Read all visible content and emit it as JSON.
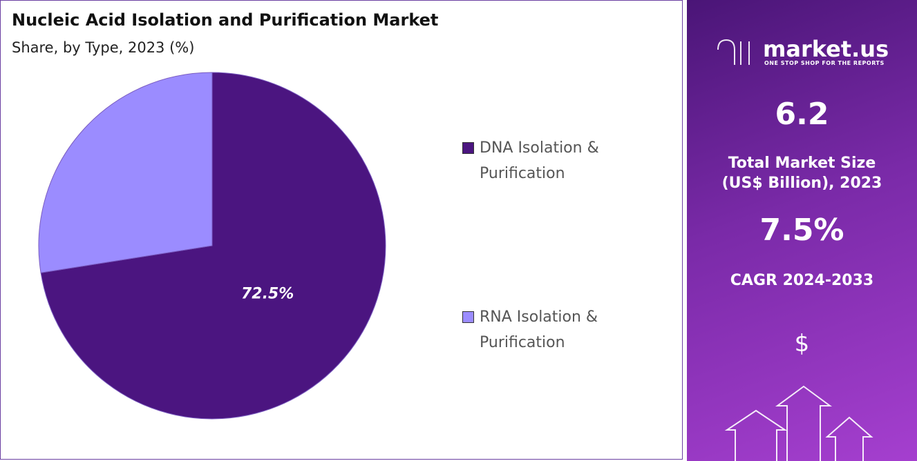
{
  "chart_data": {
    "type": "pie",
    "title": "Nucleic Acid Isolation and Purification Market",
    "subtitle": "Share, by Type, 2023 (%)",
    "categories": [
      "DNA Isolation & Purification",
      "RNA Isolation & Purification"
    ],
    "values": [
      72.5,
      27.5
    ],
    "value_labels": [
      "72.5%",
      null
    ],
    "colors": [
      "#4b1580",
      "#9b8cff"
    ],
    "legend": "right"
  },
  "panel": {
    "brand": "market.us",
    "tagline": "ONE STOP SHOP FOR THE REPORTS",
    "market_size": "6.2",
    "market_size_label": "Total Market Size (US$ Billion), 2023",
    "cagr": "7.5%",
    "cagr_label": "CAGR 2024-2033",
    "currency_icon": "$"
  }
}
